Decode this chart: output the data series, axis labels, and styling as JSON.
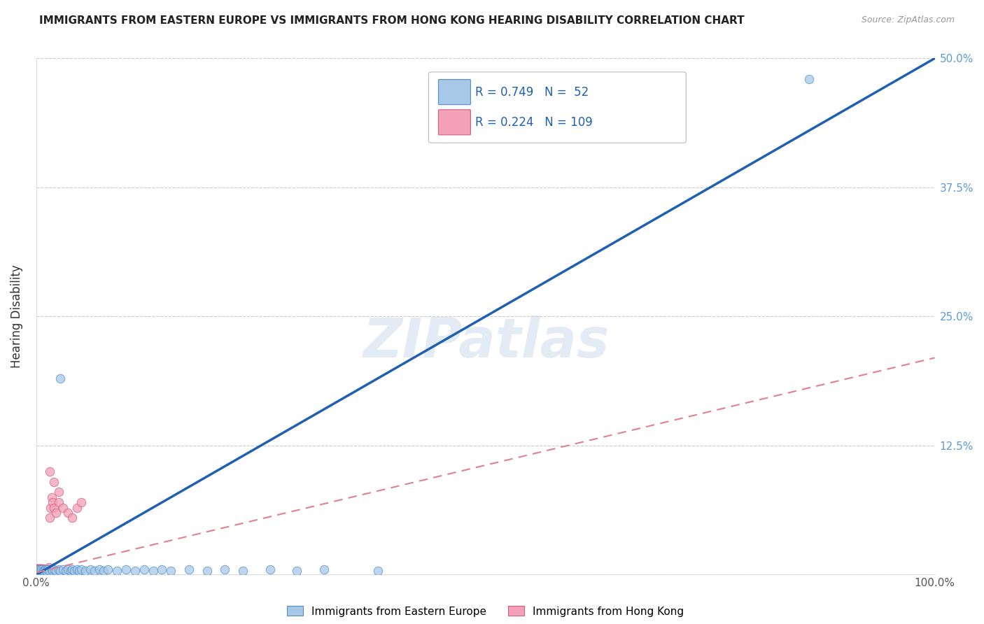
{
  "title": "IMMIGRANTS FROM EASTERN EUROPE VS IMMIGRANTS FROM HONG KONG HEARING DISABILITY CORRELATION CHART",
  "source": "Source: ZipAtlas.com",
  "ylabel": "Hearing Disability",
  "y_ticks": [
    0.0,
    0.125,
    0.25,
    0.375,
    0.5
  ],
  "y_tick_labels": [
    "",
    "12.5%",
    "25.0%",
    "37.5%",
    "50.0%"
  ],
  "x_ticks": [
    0.0,
    0.25,
    0.5,
    0.75,
    1.0
  ],
  "x_tick_labels": [
    "0.0%",
    "",
    "",
    "",
    "100.0%"
  ],
  "xlim": [
    0.0,
    1.0
  ],
  "ylim": [
    0.0,
    0.5
  ],
  "blue_R": 0.749,
  "blue_N": 52,
  "pink_R": 0.224,
  "pink_N": 109,
  "blue_color": "#A8C8E8",
  "pink_color": "#F4A0B8",
  "blue_edge_color": "#5090C8",
  "pink_edge_color": "#D06080",
  "blue_line_color": "#2060B0",
  "pink_line_color": "#E08090",
  "legend_label_blue": "Immigrants from Eastern Europe",
  "legend_label_pink": "Immigrants from Hong Kong",
  "watermark": "ZIPatlas",
  "blue_line_x0": 0.0,
  "blue_line_y0": 0.0,
  "blue_line_x1": 1.0,
  "blue_line_y1": 0.5,
  "pink_line_x0": 0.0,
  "pink_line_y0": 0.002,
  "pink_line_x1": 1.0,
  "pink_line_y1": 0.21,
  "blue_scatter_x": [
    0.001,
    0.002,
    0.003,
    0.004,
    0.005,
    0.006,
    0.007,
    0.008,
    0.009,
    0.01,
    0.011,
    0.012,
    0.013,
    0.015,
    0.017,
    0.018,
    0.02,
    0.022,
    0.025,
    0.027,
    0.03,
    0.033,
    0.035,
    0.038,
    0.04,
    0.042,
    0.045,
    0.048,
    0.05,
    0.055,
    0.06,
    0.065,
    0.07,
    0.075,
    0.08,
    0.09,
    0.1,
    0.11,
    0.12,
    0.13,
    0.14,
    0.15,
    0.17,
    0.19,
    0.21,
    0.23,
    0.26,
    0.29,
    0.32,
    0.38,
    0.86,
    0.027
  ],
  "blue_scatter_y": [
    0.004,
    0.003,
    0.005,
    0.004,
    0.003,
    0.005,
    0.004,
    0.003,
    0.004,
    0.005,
    0.004,
    0.003,
    0.005,
    0.004,
    0.005,
    0.004,
    0.005,
    0.004,
    0.005,
    0.004,
    0.005,
    0.004,
    0.005,
    0.004,
    0.005,
    0.004,
    0.005,
    0.004,
    0.005,
    0.004,
    0.005,
    0.004,
    0.005,
    0.004,
    0.005,
    0.004,
    0.005,
    0.004,
    0.005,
    0.004,
    0.005,
    0.004,
    0.005,
    0.004,
    0.005,
    0.004,
    0.005,
    0.004,
    0.005,
    0.004,
    0.48,
    0.19
  ],
  "pink_scatter_x": [
    0.001,
    0.001,
    0.001,
    0.001,
    0.001,
    0.001,
    0.001,
    0.001,
    0.001,
    0.001,
    0.001,
    0.001,
    0.001,
    0.001,
    0.001,
    0.001,
    0.001,
    0.001,
    0.001,
    0.001,
    0.002,
    0.002,
    0.002,
    0.002,
    0.002,
    0.002,
    0.002,
    0.002,
    0.002,
    0.002,
    0.003,
    0.003,
    0.003,
    0.003,
    0.003,
    0.003,
    0.003,
    0.003,
    0.003,
    0.003,
    0.004,
    0.004,
    0.004,
    0.004,
    0.004,
    0.004,
    0.004,
    0.004,
    0.004,
    0.004,
    0.005,
    0.005,
    0.005,
    0.005,
    0.005,
    0.005,
    0.005,
    0.005,
    0.005,
    0.005,
    0.006,
    0.006,
    0.006,
    0.006,
    0.006,
    0.006,
    0.006,
    0.006,
    0.006,
    0.006,
    0.007,
    0.007,
    0.007,
    0.007,
    0.007,
    0.007,
    0.007,
    0.007,
    0.007,
    0.007,
    0.008,
    0.008,
    0.008,
    0.008,
    0.008,
    0.008,
    0.009,
    0.009,
    0.009,
    0.01,
    0.011,
    0.012,
    0.013,
    0.014,
    0.015,
    0.016,
    0.017,
    0.018,
    0.02,
    0.022,
    0.025,
    0.03,
    0.035,
    0.04,
    0.045,
    0.05,
    0.015,
    0.02,
    0.025
  ],
  "pink_scatter_y": [
    0.003,
    0.004,
    0.005,
    0.006,
    0.003,
    0.004,
    0.005,
    0.006,
    0.003,
    0.004,
    0.005,
    0.006,
    0.003,
    0.004,
    0.005,
    0.006,
    0.003,
    0.004,
    0.005,
    0.006,
    0.003,
    0.004,
    0.005,
    0.006,
    0.003,
    0.004,
    0.005,
    0.006,
    0.003,
    0.004,
    0.003,
    0.004,
    0.005,
    0.006,
    0.003,
    0.004,
    0.005,
    0.006,
    0.003,
    0.004,
    0.003,
    0.004,
    0.005,
    0.006,
    0.003,
    0.004,
    0.005,
    0.006,
    0.003,
    0.004,
    0.003,
    0.004,
    0.005,
    0.006,
    0.003,
    0.004,
    0.005,
    0.006,
    0.003,
    0.004,
    0.003,
    0.004,
    0.005,
    0.006,
    0.003,
    0.004,
    0.005,
    0.006,
    0.003,
    0.004,
    0.003,
    0.004,
    0.005,
    0.006,
    0.003,
    0.004,
    0.005,
    0.006,
    0.003,
    0.004,
    0.003,
    0.004,
    0.005,
    0.006,
    0.003,
    0.004,
    0.003,
    0.004,
    0.005,
    0.003,
    0.004,
    0.005,
    0.006,
    0.007,
    0.055,
    0.065,
    0.075,
    0.07,
    0.065,
    0.06,
    0.07,
    0.065,
    0.06,
    0.055,
    0.065,
    0.07,
    0.1,
    0.09,
    0.08
  ]
}
